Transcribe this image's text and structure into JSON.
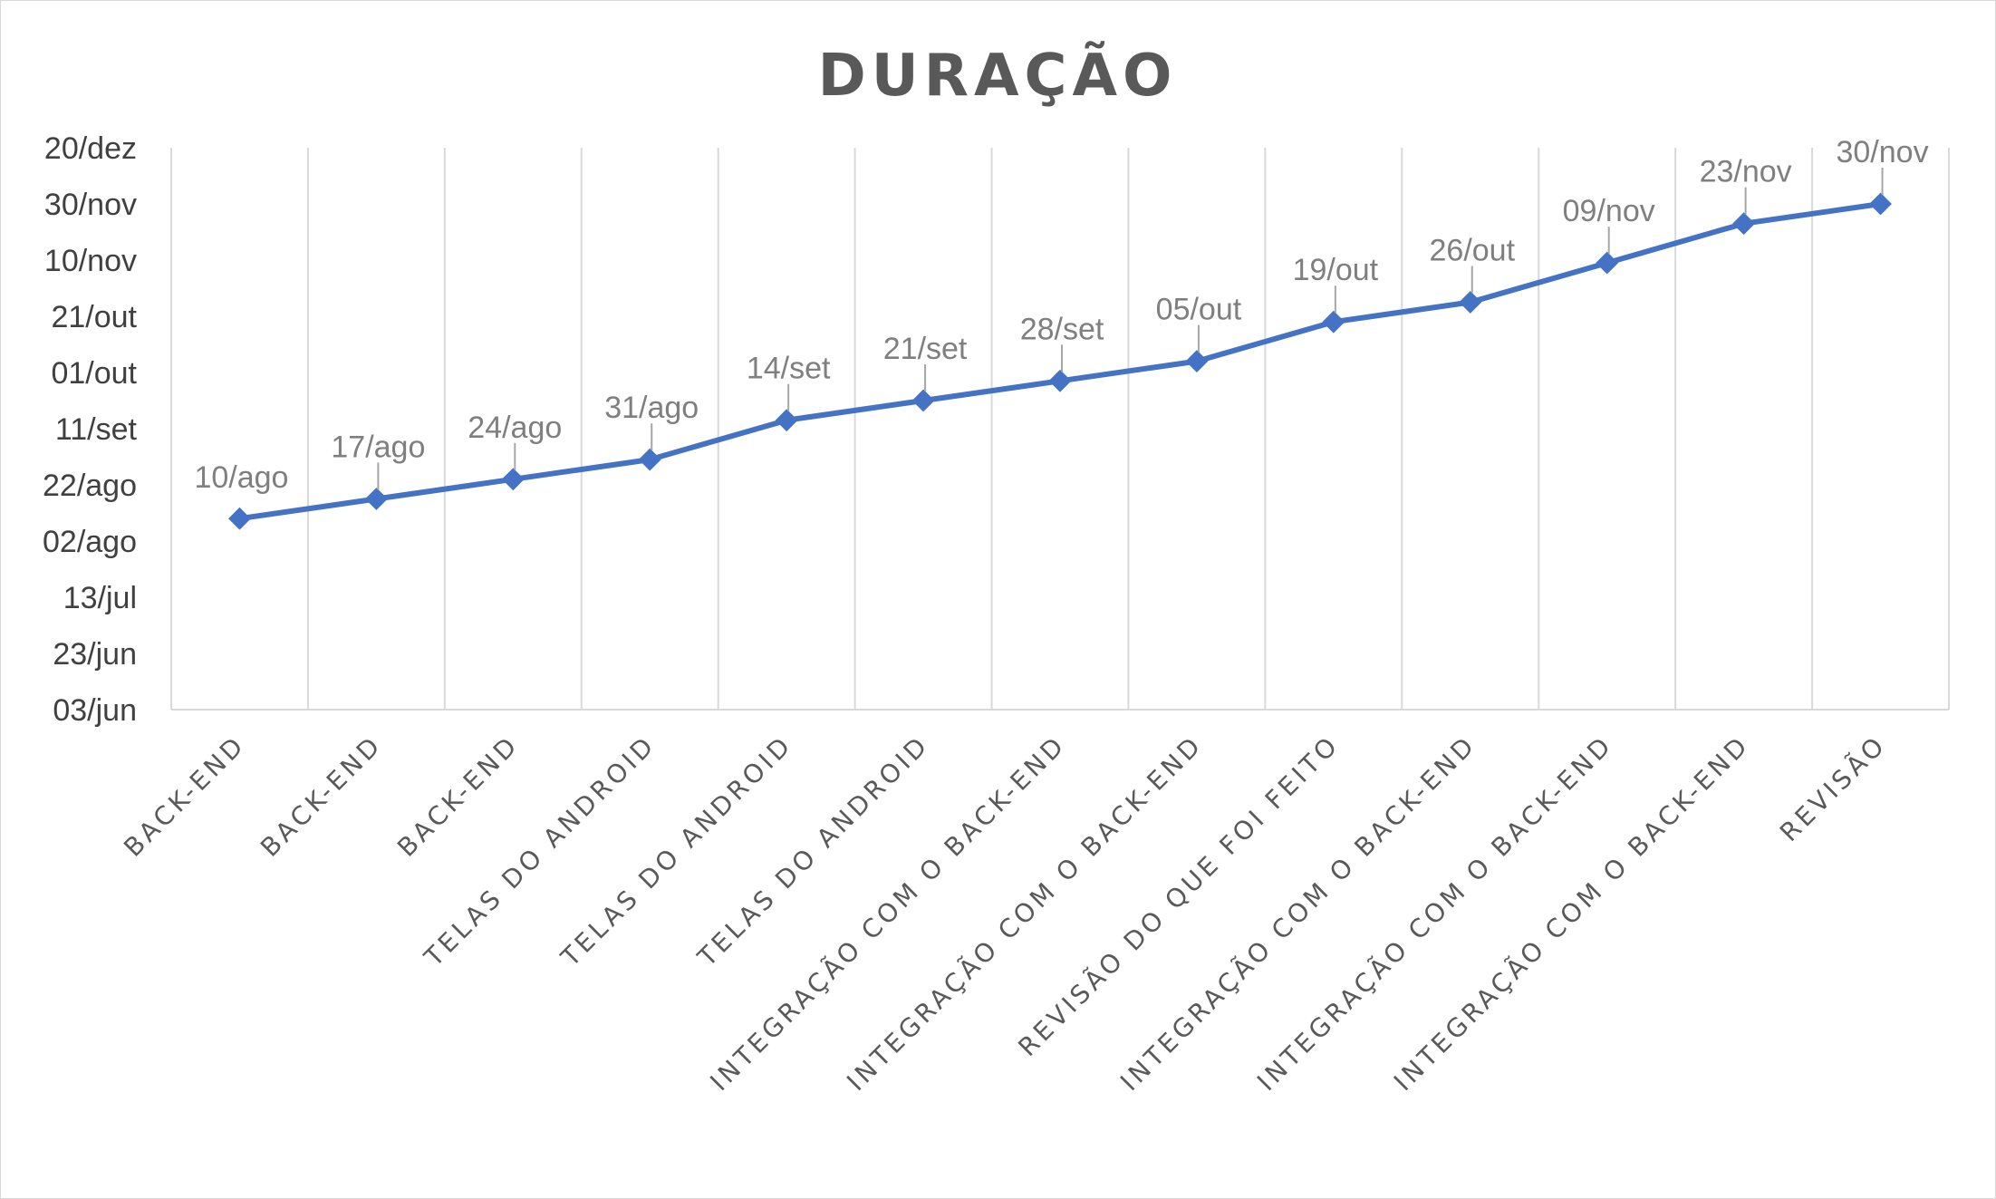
{
  "chart_data": {
    "type": "line",
    "title": "DURAÇÃO",
    "xlabel": "",
    "ylabel": "",
    "categories": [
      "BACK-END",
      "BACK-END",
      "BACK-END",
      "TELAS DO ANDROID",
      "TELAS DO ANDROID",
      "TELAS DO ANDROID",
      "INTEGRAÇÃO COM O BACK-END",
      "INTEGRAÇÃO COM O BACK-END",
      "REVISÃO DO QUE FOI FEITO",
      "INTEGRAÇÃO COM O BACK-END",
      "INTEGRAÇÃO COM O BACK-END",
      "INTEGRAÇÃO COM O BACK-END",
      "REVISÃO"
    ],
    "series": [
      {
        "values": [
          "2017-08-10",
          "2017-08-17",
          "2017-08-24",
          "2017-08-31",
          "2017-09-14",
          "2017-09-21",
          "2017-09-28",
          "2017-10-05",
          "2017-10-19",
          "2017-10-26",
          "2017-11-09",
          "2017-11-23",
          "2017-11-30"
        ],
        "data_labels": [
          "10/ago",
          "17/ago",
          "24/ago",
          "31/ago",
          "14/set",
          "21/set",
          "28/set",
          "05/out",
          "19/out",
          "26/out",
          "09/nov",
          "23/nov",
          "30/nov"
        ],
        "color": "#4472c4",
        "marker": "diamond"
      }
    ],
    "y_ticks": [
      "2017-06-03",
      "2017-06-23",
      "2017-07-13",
      "2017-08-02",
      "2017-08-22",
      "2017-09-11",
      "2017-10-01",
      "2017-10-21",
      "2017-11-10",
      "2017-11-30",
      "2017-12-20"
    ],
    "y_tick_labels": [
      "03/jun",
      "23/jun",
      "13/jul",
      "02/ago",
      "22/ago",
      "11/set",
      "01/out",
      "21/out",
      "10/nov",
      "30/nov",
      "20/dez"
    ],
    "ylim": [
      "2017-06-03",
      "2017-12-20"
    ],
    "grid": "vertical",
    "legend": "none",
    "colors": {
      "line": "#4472c4",
      "grid": "#d9d9d9",
      "title": "#595959",
      "data_label": "#7f7f7f",
      "tick": "#404040"
    }
  }
}
